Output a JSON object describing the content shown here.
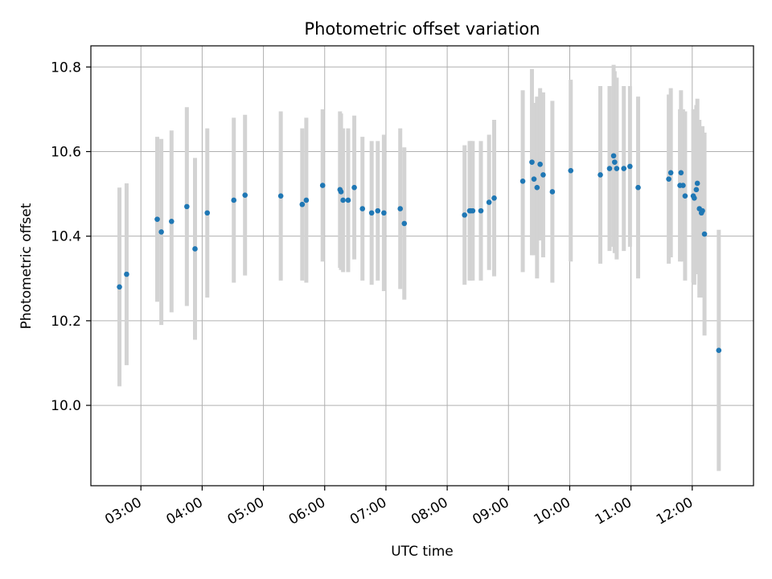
{
  "chart_data": {
    "type": "scatter",
    "title": "Photometric offset variation",
    "xlabel": "UTC time",
    "ylabel": "Photometric offset",
    "x_ticks": [
      "03:00",
      "04:00",
      "05:00",
      "06:00",
      "07:00",
      "08:00",
      "09:00",
      "10:00",
      "11:00",
      "12:00"
    ],
    "y_ticks": [
      "10.0",
      "10.2",
      "10.4",
      "10.6",
      "10.8"
    ],
    "xlim": [
      "02:11",
      "13:00"
    ],
    "ylim": [
      9.81,
      10.85
    ],
    "grid": true,
    "colors": {
      "point": "#1f77b4",
      "errorbar": "#d3d3d3",
      "grid": "#b0b0b0"
    },
    "series": [
      {
        "x": [
          "02:39",
          "02:46",
          "03:16",
          "03:20",
          "03:30",
          "03:45",
          "03:53",
          "04:05",
          "04:31",
          "04:42",
          "05:17",
          "05:38",
          "05:42",
          "05:58",
          "06:15",
          "06:16",
          "06:18",
          "06:23",
          "06:29",
          "06:37",
          "06:46",
          "06:52",
          "06:58",
          "07:14",
          "07:18",
          "08:17",
          "08:22",
          "08:23",
          "08:25",
          "08:33",
          "08:41",
          "08:46",
          "09:14",
          "09:23",
          "09:25",
          "09:28",
          "09:31",
          "09:34",
          "09:43",
          "10:01",
          "10:30",
          "10:39",
          "10:43",
          "10:44",
          "10:46",
          "10:53",
          "10:59",
          "11:07",
          "11:37",
          "11:39",
          "11:48",
          "11:49",
          "11:51",
          "11:53",
          "12:01",
          "12:02",
          "12:04",
          "12:05",
          "12:07",
          "12:09",
          "12:10",
          "12:12",
          "12:26"
        ],
        "y": [
          10.28,
          10.31,
          10.44,
          10.41,
          10.435,
          10.47,
          10.37,
          10.455,
          10.485,
          10.497,
          10.495,
          10.475,
          10.485,
          10.52,
          10.51,
          10.505,
          10.485,
          10.485,
          10.515,
          10.465,
          10.455,
          10.46,
          10.455,
          10.465,
          10.43,
          10.45,
          10.46,
          10.46,
          10.46,
          10.46,
          10.48,
          10.49,
          10.53,
          10.575,
          10.535,
          10.515,
          10.57,
          10.545,
          10.505,
          10.555,
          10.545,
          10.56,
          10.59,
          10.575,
          10.56,
          10.56,
          10.565,
          10.515,
          10.535,
          10.55,
          10.52,
          10.55,
          10.52,
          10.495,
          10.495,
          10.49,
          10.51,
          10.525,
          10.465,
          10.455,
          10.46,
          10.405,
          10.13
        ],
        "yerr": [
          0.235,
          0.215,
          0.195,
          0.22,
          0.215,
          0.235,
          0.215,
          0.2,
          0.195,
          0.19,
          0.2,
          0.18,
          0.195,
          0.18,
          0.185,
          0.185,
          0.17,
          0.17,
          0.17,
          0.17,
          0.17,
          0.165,
          0.185,
          0.19,
          0.18,
          0.165,
          0.165,
          0.165,
          0.165,
          0.165,
          0.16,
          0.185,
          0.215,
          0.22,
          0.18,
          0.215,
          0.18,
          0.195,
          0.215,
          0.215,
          0.21,
          0.195,
          0.215,
          0.215,
          0.215,
          0.195,
          0.19,
          0.215,
          0.2,
          0.2,
          0.18,
          0.195,
          0.18,
          0.2,
          0.205,
          0.205,
          0.2,
          0.2,
          0.21,
          0.2,
          0.2,
          0.24,
          0.285
        ]
      }
    ]
  }
}
